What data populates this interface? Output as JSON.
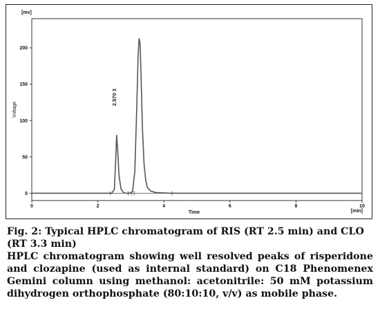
{
  "chart_data": {
    "type": "line",
    "ylabel": "Voltage",
    "yunit": "[mv]",
    "xlabel": "Time",
    "xunit": "[min]",
    "xlim": [
      0,
      10
    ],
    "ylim": [
      -10,
      240
    ],
    "xticks": [
      "0",
      "2",
      "4",
      "6",
      "8",
      "10"
    ],
    "yticks": [
      "0",
      "50",
      "100",
      "150",
      "200"
    ],
    "grid": false,
    "peak_label": "2.570 3",
    "series": [
      {
        "x": [
          0,
          2.3,
          2.42,
          2.5,
          2.55,
          2.57,
          2.6,
          2.64,
          2.7,
          2.78,
          2.85,
          2.95,
          3.05,
          3.12,
          3.18,
          3.22,
          3.25,
          3.28,
          3.31,
          3.35,
          3.4,
          3.45,
          3.5,
          3.6,
          3.75,
          3.95,
          4.2,
          10
        ],
        "y": [
          0,
          0,
          0,
          5,
          55,
          80,
          60,
          25,
          6,
          1,
          0,
          0,
          2,
          30,
          120,
          190,
          213,
          205,
          160,
          90,
          40,
          18,
          8,
          3,
          1,
          0.5,
          0,
          0
        ]
      }
    ]
  },
  "caption": {
    "figure": "Fig. 2: Typical HPLC chromatogram of RIS (RT 2.5 min) and CLO (RT 3.3 min)",
    "description": "HPLC chromatogram showing well resolved peaks of risperidone and clozapine (used as internal standard) on C18 Phenomenex Gemini column using methanol: acetonitrile: 50 mM potassium dihydrogen orthophosphate (80:10:10, v/v) as mobile phase."
  }
}
